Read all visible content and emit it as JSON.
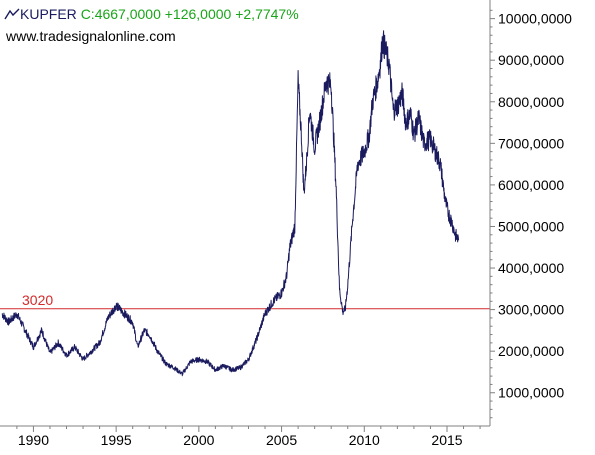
{
  "header": {
    "symbol": "KUPFER",
    "quote": "C:4667,0000 +126,0000 +2,7747%",
    "source": "www.tradesignalonline.com"
  },
  "colors": {
    "series": "#1a1a5e",
    "line_3020": "#d42a2a",
    "quote": "#1aa51a",
    "axis": "#808080"
  },
  "icons": {
    "chart_symbol": "line-chart-icon"
  },
  "chart_data": {
    "type": "line",
    "title": "",
    "xlabel": "",
    "ylabel": "",
    "x_ticks": [
      "1990",
      "1995",
      "2000",
      "2005",
      "2010",
      "2015"
    ],
    "y_ticks": [
      "1000,0000",
      "2000,0000",
      "3000,0000",
      "4000,0000",
      "5000,0000",
      "6000,0000",
      "7000,0000",
      "8000,0000",
      "9000,0000",
      "10000,0000"
    ],
    "xlim": [
      1988.1,
      2017.6
    ],
    "ylim": [
      200,
      10400
    ],
    "grid": false,
    "horizontal_lines": [
      {
        "value": 3020,
        "label": "3020"
      }
    ],
    "series": [
      {
        "x": [
          1988.1,
          1988.5,
          1989.0,
          1989.5,
          1990.0,
          1990.5,
          1991.0,
          1991.5,
          1992.0,
          1992.5,
          1993.0,
          1993.5,
          1994.0,
          1994.5,
          1995.0,
          1995.5,
          1996.0,
          1996.3,
          1996.7,
          1997.0,
          1997.5,
          1998.0,
          1998.5,
          1999.0,
          1999.5,
          2000.0,
          2000.5,
          2001.0,
          2001.5,
          2002.0,
          2002.5,
          2003.0,
          2003.5,
          2004.0,
          2004.5,
          2005.0,
          2005.3,
          2005.5,
          2005.8,
          2006.0,
          2006.2,
          2006.35,
          2006.5,
          2006.7,
          2007.0,
          2007.3,
          2007.5,
          2007.7,
          2008.0,
          2008.3,
          2008.5,
          2008.7,
          2008.85,
          2009.0,
          2009.3,
          2009.6,
          2010.0,
          2010.3,
          2010.5,
          2010.8,
          2011.0,
          2011.1,
          2011.3,
          2011.5,
          2011.75,
          2012.0,
          2012.3,
          2012.5,
          2012.8,
          2013.0,
          2013.3,
          2013.6,
          2014.0,
          2014.3,
          2014.6,
          2014.9,
          2015.1,
          2015.3,
          2015.5,
          2015.7
        ],
        "values": [
          2900,
          2700,
          2900,
          2500,
          2100,
          2500,
          1950,
          2200,
          1900,
          2100,
          1800,
          2000,
          2200,
          2800,
          3100,
          2900,
          2700,
          2100,
          2500,
          2400,
          2000,
          1700,
          1600,
          1450,
          1750,
          1800,
          1750,
          1550,
          1650,
          1550,
          1600,
          1800,
          2300,
          2900,
          3200,
          3400,
          3800,
          4500,
          5000,
          8500,
          7200,
          5800,
          6500,
          7800,
          6900,
          7500,
          8000,
          8500,
          8400,
          5900,
          3500,
          2950,
          3000,
          3600,
          5200,
          6500,
          6800,
          7200,
          8000,
          8500,
          9000,
          9500,
          9200,
          8900,
          7800,
          7900,
          8200,
          7500,
          7700,
          7200,
          7600,
          7000,
          7100,
          6800,
          6500,
          5600,
          5300,
          5100,
          4800,
          4667
        ]
      }
    ]
  }
}
